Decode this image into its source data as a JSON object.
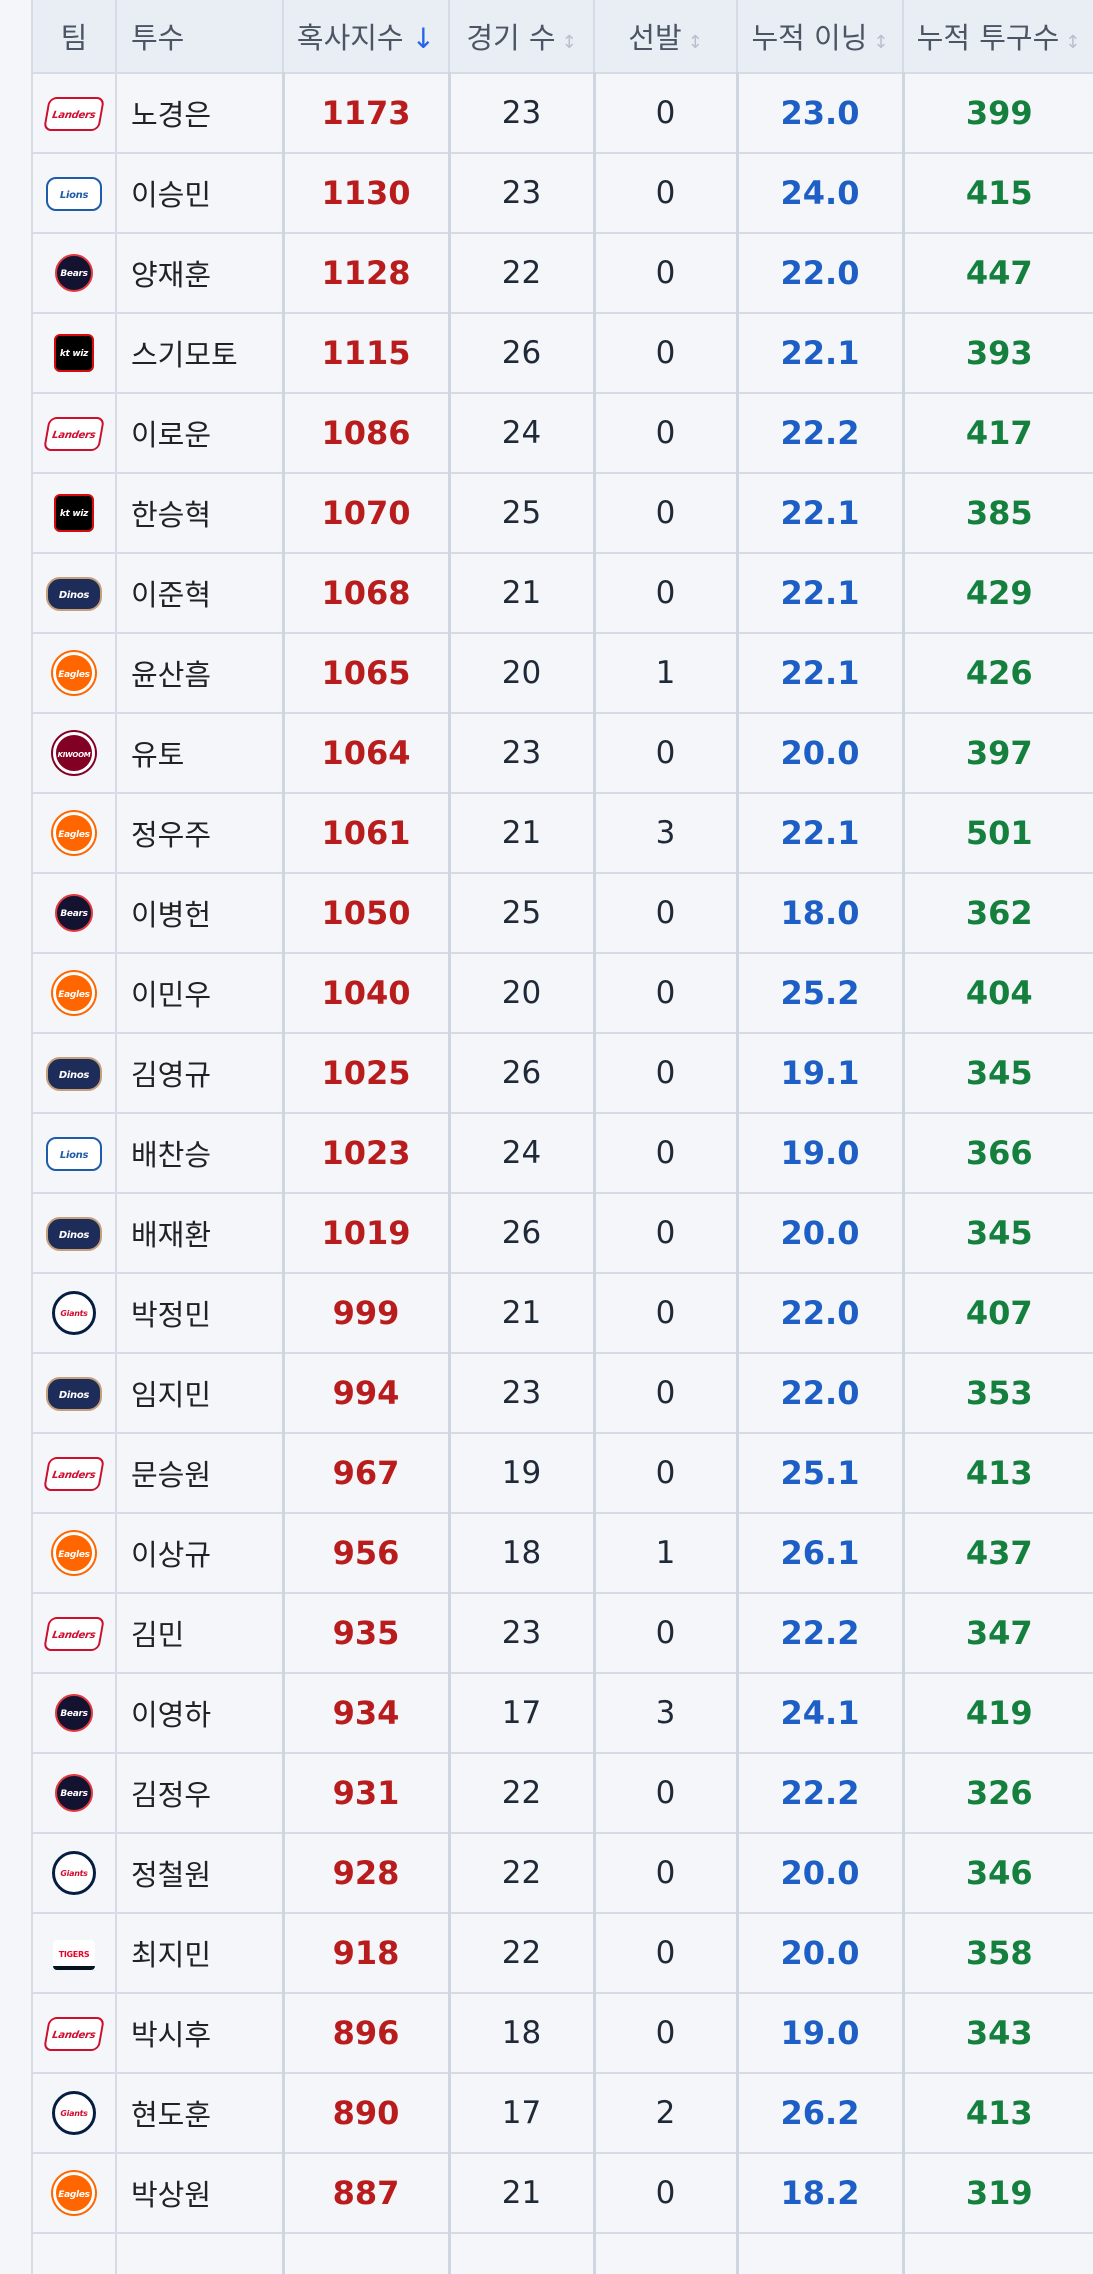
{
  "header": {
    "team": "팀",
    "pitcher": "투수",
    "score": "혹사지수",
    "score_sort_icon": "↓",
    "games": "경기 수",
    "starts": "선발",
    "innings": "누적 이닝",
    "pitches": "누적 투구수",
    "unsorted_icon": "↕"
  },
  "colors": {
    "score": "#b91c1c",
    "innings": "#1d5fc4",
    "pitches": "#15803d",
    "sort_active": "#2563eb"
  },
  "rows": [
    {
      "team": "landers",
      "logo": "Landers",
      "name": "노경은",
      "score": "1173",
      "games": "23",
      "starts": "0",
      "innings": "23.0",
      "pitches": "399"
    },
    {
      "team": "lions",
      "logo": "Lions",
      "name": "이승민",
      "score": "1130",
      "games": "23",
      "starts": "0",
      "innings": "24.0",
      "pitches": "415"
    },
    {
      "team": "bears",
      "logo": "Bears",
      "name": "양재훈",
      "score": "1128",
      "games": "22",
      "starts": "0",
      "innings": "22.0",
      "pitches": "447"
    },
    {
      "team": "ktwiz",
      "logo": "kt wiz",
      "name": "스기모토",
      "score": "1115",
      "games": "26",
      "starts": "0",
      "innings": "22.1",
      "pitches": "393"
    },
    {
      "team": "landers",
      "logo": "Landers",
      "name": "이로운",
      "score": "1086",
      "games": "24",
      "starts": "0",
      "innings": "22.2",
      "pitches": "417"
    },
    {
      "team": "ktwiz",
      "logo": "kt wiz",
      "name": "한승혁",
      "score": "1070",
      "games": "25",
      "starts": "0",
      "innings": "22.1",
      "pitches": "385"
    },
    {
      "team": "dinos",
      "logo": "Dinos",
      "name": "이준혁",
      "score": "1068",
      "games": "21",
      "starts": "0",
      "innings": "22.1",
      "pitches": "429"
    },
    {
      "team": "eagles",
      "logo": "Eagles",
      "name": "윤산흠",
      "score": "1065",
      "games": "20",
      "starts": "1",
      "innings": "22.1",
      "pitches": "426"
    },
    {
      "team": "kiwoom",
      "logo": "KIWOOM",
      "name": "유토",
      "score": "1064",
      "games": "23",
      "starts": "0",
      "innings": "20.0",
      "pitches": "397"
    },
    {
      "team": "eagles",
      "logo": "Eagles",
      "name": "정우주",
      "score": "1061",
      "games": "21",
      "starts": "3",
      "innings": "22.1",
      "pitches": "501"
    },
    {
      "team": "bears",
      "logo": "Bears",
      "name": "이병헌",
      "score": "1050",
      "games": "25",
      "starts": "0",
      "innings": "18.0",
      "pitches": "362"
    },
    {
      "team": "eagles",
      "logo": "Eagles",
      "name": "이민우",
      "score": "1040",
      "games": "20",
      "starts": "0",
      "innings": "25.2",
      "pitches": "404"
    },
    {
      "team": "dinos",
      "logo": "Dinos",
      "name": "김영규",
      "score": "1025",
      "games": "26",
      "starts": "0",
      "innings": "19.1",
      "pitches": "345"
    },
    {
      "team": "lions",
      "logo": "Lions",
      "name": "배찬승",
      "score": "1023",
      "games": "24",
      "starts": "0",
      "innings": "19.0",
      "pitches": "366"
    },
    {
      "team": "dinos",
      "logo": "Dinos",
      "name": "배재환",
      "score": "1019",
      "games": "26",
      "starts": "0",
      "innings": "20.0",
      "pitches": "345"
    },
    {
      "team": "giants",
      "logo": "Giants",
      "name": "박정민",
      "score": "999",
      "games": "21",
      "starts": "0",
      "innings": "22.0",
      "pitches": "407"
    },
    {
      "team": "dinos",
      "logo": "Dinos",
      "name": "임지민",
      "score": "994",
      "games": "23",
      "starts": "0",
      "innings": "22.0",
      "pitches": "353"
    },
    {
      "team": "landers",
      "logo": "Landers",
      "name": "문승원",
      "score": "967",
      "games": "19",
      "starts": "0",
      "innings": "25.1",
      "pitches": "413"
    },
    {
      "team": "eagles",
      "logo": "Eagles",
      "name": "이상규",
      "score": "956",
      "games": "18",
      "starts": "1",
      "innings": "26.1",
      "pitches": "437"
    },
    {
      "team": "landers",
      "logo": "Landers",
      "name": "김민",
      "score": "935",
      "games": "23",
      "starts": "0",
      "innings": "22.2",
      "pitches": "347"
    },
    {
      "team": "bears",
      "logo": "Bears",
      "name": "이영하",
      "score": "934",
      "games": "17",
      "starts": "3",
      "innings": "24.1",
      "pitches": "419"
    },
    {
      "team": "bears",
      "logo": "Bears",
      "name": "김정우",
      "score": "931",
      "games": "22",
      "starts": "0",
      "innings": "22.2",
      "pitches": "326"
    },
    {
      "team": "giants",
      "logo": "Giants",
      "name": "정철원",
      "score": "928",
      "games": "22",
      "starts": "0",
      "innings": "20.0",
      "pitches": "346"
    },
    {
      "team": "tigers",
      "logo": "TIGERS",
      "name": "최지민",
      "score": "918",
      "games": "22",
      "starts": "0",
      "innings": "20.0",
      "pitches": "358"
    },
    {
      "team": "landers",
      "logo": "Landers",
      "name": "박시후",
      "score": "896",
      "games": "18",
      "starts": "0",
      "innings": "19.0",
      "pitches": "343"
    },
    {
      "team": "giants",
      "logo": "Giants",
      "name": "현도훈",
      "score": "890",
      "games": "17",
      "starts": "2",
      "innings": "26.2",
      "pitches": "413"
    },
    {
      "team": "eagles",
      "logo": "Eagles",
      "name": "박상원",
      "score": "887",
      "games": "21",
      "starts": "0",
      "innings": "18.2",
      "pitches": "319"
    }
  ]
}
